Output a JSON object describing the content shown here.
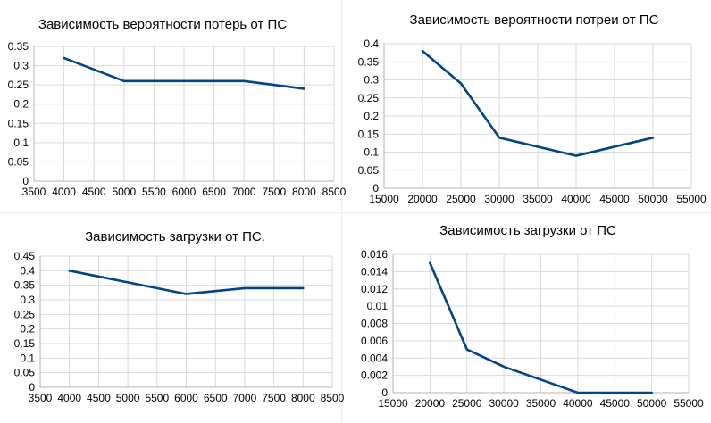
{
  "chart_data": [
    {
      "type": "line",
      "title": "Зависимость вероятности потерь от ПС",
      "x": [
        4000,
        5000,
        6000,
        7000,
        8000
      ],
      "series": [
        {
          "values": [
            0.32,
            0.26,
            0.26,
            0.26,
            0.24
          ],
          "color": "#004586"
        }
      ],
      "xlim": [
        3500,
        8500
      ],
      "xstep": 500,
      "ylim": [
        0,
        0.35
      ],
      "ystep": 0.05,
      "ydecimals": 2,
      "xticks": [
        "3500",
        "4000",
        "4500",
        "5000",
        "5500",
        "6000",
        "6500",
        "7000",
        "7500",
        "8000",
        "8500"
      ],
      "yticks": [
        "0",
        "0.05",
        "0.1",
        "0.15",
        "0.2",
        "0.25",
        "0.3",
        "0.35"
      ],
      "grid": true
    },
    {
      "type": "line",
      "title": "Зависимость вероятности потреи от ПС",
      "x": [
        20000,
        25000,
        30000,
        40000,
        50000
      ],
      "series": [
        {
          "values": [
            0.38,
            0.29,
            0.14,
            0.09,
            0.14
          ],
          "color": "#004586"
        }
      ],
      "xlim": [
        15000,
        55000
      ],
      "xstep": 5000,
      "ylim": [
        0,
        0.4
      ],
      "ystep": 0.05,
      "ydecimals": 2,
      "xticks": [
        "15000",
        "20000",
        "25000",
        "30000",
        "35000",
        "40000",
        "45000",
        "50000",
        "55000"
      ],
      "yticks": [
        "0",
        "0.05",
        "0.1",
        "0.15",
        "0.2",
        "0.25",
        "0.3",
        "0.35",
        "0.4"
      ],
      "grid": true
    },
    {
      "type": "line",
      "title": "Зависимость загрузки от ПС.",
      "x": [
        4000,
        5000,
        6000,
        7000,
        8000
      ],
      "series": [
        {
          "values": [
            0.4,
            0.36,
            0.32,
            0.34,
            0.34
          ],
          "color": "#004586"
        }
      ],
      "xlim": [
        3500,
        8500
      ],
      "xstep": 500,
      "ylim": [
        0,
        0.45
      ],
      "ystep": 0.05,
      "ydecimals": 2,
      "xticks": [
        "3500",
        "4000",
        "4500",
        "5000",
        "5500",
        "6000",
        "6500",
        "7000",
        "7500",
        "8000",
        "8500"
      ],
      "yticks": [
        "0",
        "0.05",
        "0.1",
        "0.15",
        "0.2",
        "0.25",
        "0.3",
        "0.35",
        "0.4",
        "0.45"
      ],
      "grid": true
    },
    {
      "type": "line",
      "title": "Зависимость загрузки от ПС",
      "x": [
        20000,
        25000,
        30000,
        40000,
        50000
      ],
      "series": [
        {
          "values": [
            0.015,
            0.005,
            0.003,
            0.0,
            0.0
          ],
          "color": "#004586"
        }
      ],
      "xlim": [
        15000,
        55000
      ],
      "xstep": 5000,
      "ylim": [
        0,
        0.016
      ],
      "ystep": 0.002,
      "ydecimals": 3,
      "xticks": [
        "15000",
        "20000",
        "25000",
        "30000",
        "35000",
        "40000",
        "45000",
        "50000",
        "55000"
      ],
      "yticks": [
        "0",
        "0.002",
        "0.004",
        "0.006",
        "0.008",
        "0.01",
        "0.012",
        "0.014",
        "0.016"
      ],
      "grid": true
    }
  ]
}
